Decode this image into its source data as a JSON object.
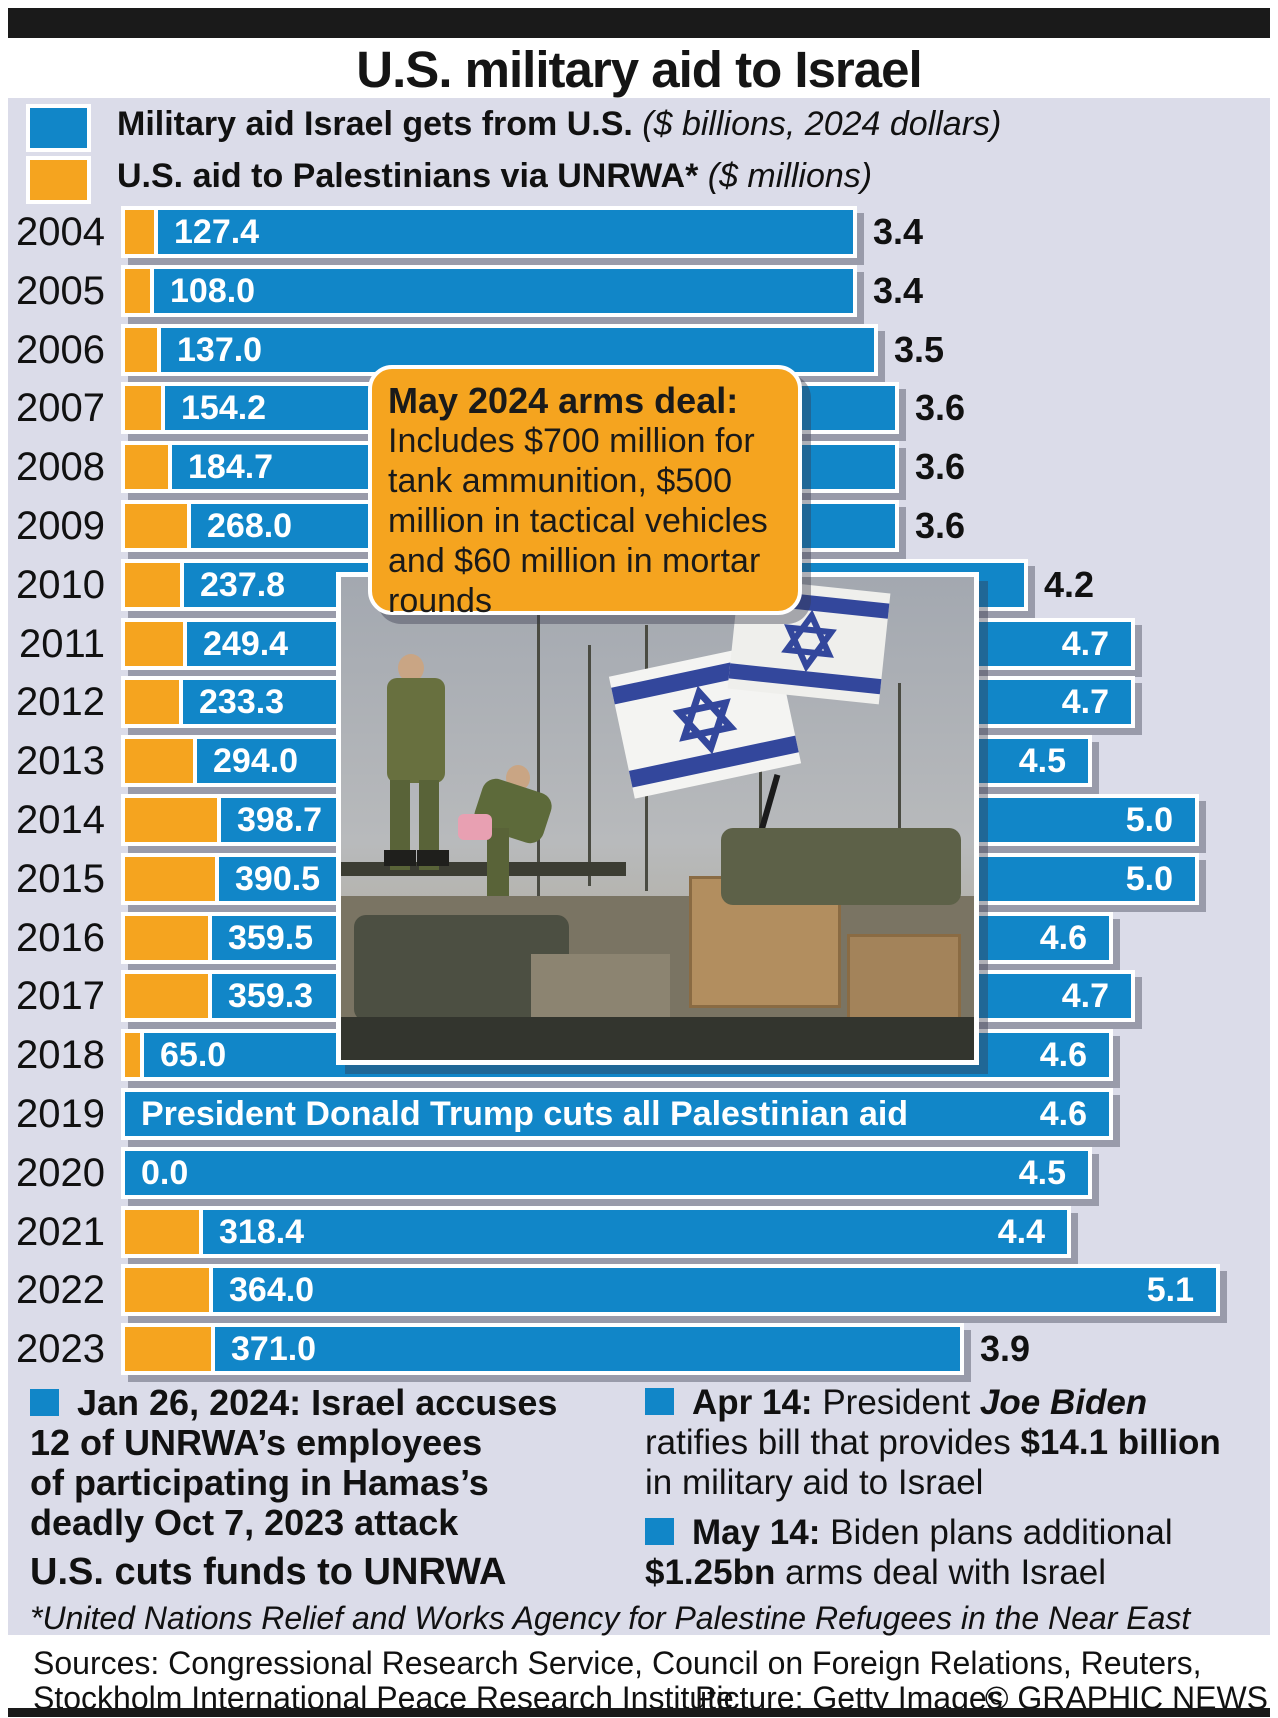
{
  "title": "U.S. military aid to Israel",
  "legend": [
    {
      "label": "Military aid Israel gets from U.S.",
      "note": " ($ billions, 2024 dollars)",
      "color": "#1186c8"
    },
    {
      "label": "U.S. aid to Palestinians via UNRWA*",
      "note": " ($ millions)",
      "color": "#f5a41f"
    }
  ],
  "chart_data": {
    "type": "bar",
    "orientation": "horizontal",
    "title": "U.S. military aid to Israel",
    "categories": [
      "2004",
      "2005",
      "2006",
      "2007",
      "2008",
      "2009",
      "2010",
      "2011",
      "2012",
      "2013",
      "2014",
      "2015",
      "2016",
      "2017",
      "2018",
      "2019",
      "2020",
      "2021",
      "2022",
      "2023"
    ],
    "series": [
      {
        "name": "Military aid Israel gets from U.S. ($ billions, 2024 dollars)",
        "color": "#1186c8",
        "values": [
          3.4,
          3.4,
          3.5,
          3.6,
          3.6,
          3.6,
          4.2,
          4.7,
          4.7,
          4.5,
          5.0,
          5.0,
          4.6,
          4.7,
          4.6,
          4.6,
          4.5,
          4.4,
          5.1,
          3.9
        ]
      },
      {
        "name": "U.S. aid to Palestinians via UNRWA ($ millions)",
        "color": "#f5a41f",
        "values": [
          127.4,
          108.0,
          137.0,
          154.2,
          184.7,
          268.0,
          237.8,
          249.4,
          233.3,
          294.0,
          398.7,
          390.5,
          359.5,
          359.3,
          65.0,
          null,
          0.0,
          318.4,
          364.0,
          371.0
        ]
      }
    ],
    "annotations": [
      {
        "category": "2019",
        "text": "President Donald Trump cuts all Palestinian aid"
      }
    ],
    "legend_position": "top",
    "grid": false,
    "value_labels": true
  },
  "callout": {
    "title": "May 2024 arms deal:",
    "body": "Includes $700 million for tank ammunition, $500 million in tactical vehicles and $60 million in mortar rounds"
  },
  "photo": {
    "description": "Israeli soldiers on armored vehicles with Israeli flags"
  },
  "notes": {
    "left": {
      "lines": [
        "Jan 26, 2024: Israel accuses",
        "12 of UNRWA’s employees",
        "of participating in Hamas’s",
        "deadly Oct 7, 2023 attack"
      ],
      "tagline": "U.S. cuts funds to UNRWA"
    },
    "right": {
      "note1": [
        [
          {
            "t": "Apr 14: ",
            "b": 1
          },
          {
            "t": "President ",
            "b": 0
          },
          {
            "t": "Joe Biden",
            "b": 1,
            "i": 1
          }
        ],
        [
          {
            "t": "ratifies bill that provides ",
            "b": 0
          },
          {
            "t": "$14.1 billion",
            "b": 1
          }
        ],
        [
          {
            "t": "in military aid to Israel",
            "b": 0
          }
        ]
      ],
      "note2": [
        [
          {
            "t": "May 14: ",
            "b": 1
          },
          {
            "t": "Biden plans additional",
            "b": 0
          }
        ],
        [
          {
            "t": "$1.25bn",
            "b": 1
          },
          {
            "t": " arms deal with Israel",
            "b": 0
          }
        ]
      ]
    }
  },
  "footnote": "*United Nations Relief and Works Agency for Palestine Refugees in the Near East",
  "sources": {
    "line1": "Sources: Congressional Research Service, Council on Foreign Relations, Reuters,",
    "line2": "Stockholm International Peace Research Institute",
    "picture": "Picture: Getty Images",
    "copyright": "© GRAPHIC NEWS"
  },
  "colors": {
    "blue": "#1186c8",
    "orange": "#f5a41f",
    "panel": "#dbdce9",
    "rule": "#1a1a1a"
  }
}
